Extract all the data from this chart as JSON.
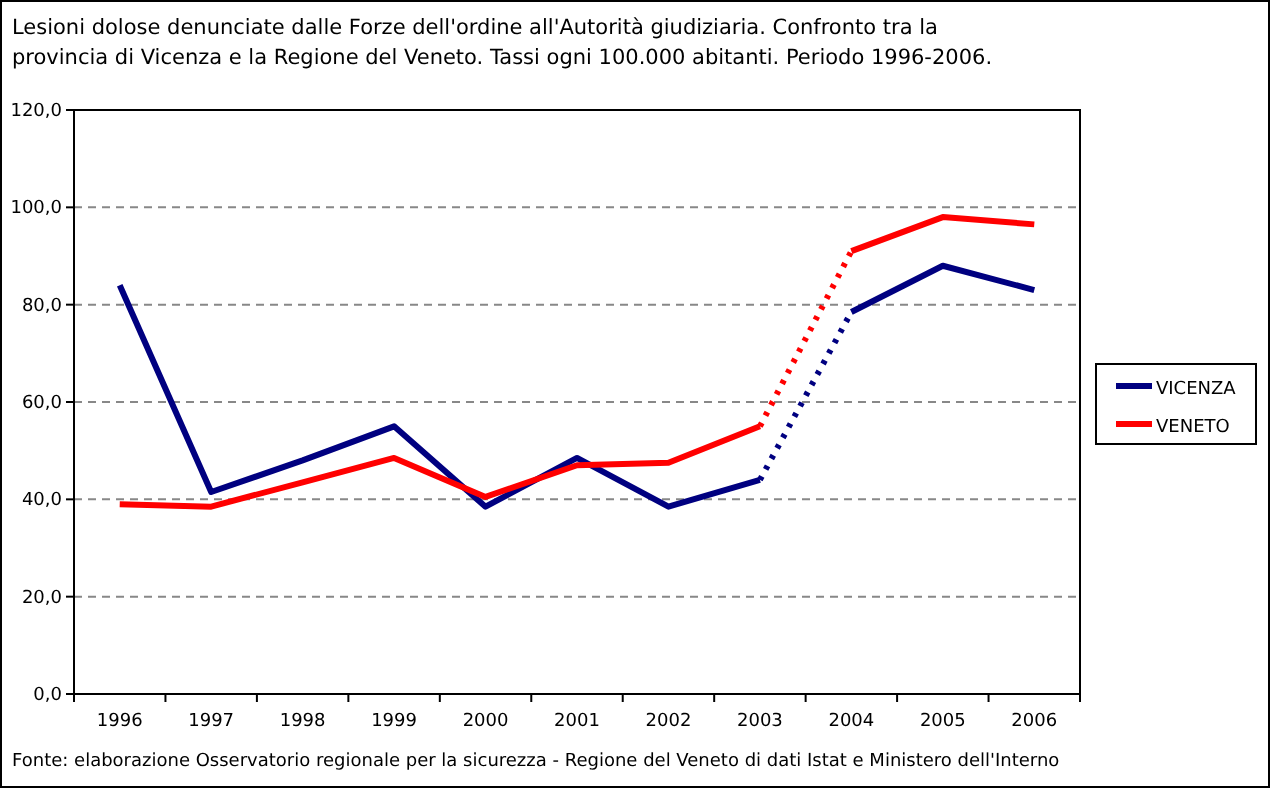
{
  "chart_data": {
    "type": "line",
    "title": "Lesioni dolose denunciate dalle Forze dell'ordine all'Autorità giudiziaria. Confronto tra la provincia di Vicenza e la Regione del Veneto. Tassi ogni 100.000 abitanti. Periodo 1996-2006.",
    "categories": [
      "1996",
      "1997",
      "1998",
      "1999",
      "2000",
      "2001",
      "2002",
      "2003",
      "2004",
      "2005",
      "2006"
    ],
    "series": [
      {
        "name": "VICENZA",
        "color": "#000080",
        "values": [
          84,
          41.5,
          48,
          55,
          38.5,
          48.5,
          38.5,
          44,
          null,
          null,
          null
        ]
      },
      {
        "color": "#000080",
        "line_style": "dotted",
        "values": [
          null,
          null,
          null,
          null,
          null,
          null,
          null,
          44,
          78.5,
          null,
          null
        ]
      },
      {
        "color": "#000080",
        "values": [
          null,
          null,
          null,
          null,
          null,
          null,
          null,
          null,
          78.5,
          88,
          83
        ]
      },
      {
        "name": "VENETO",
        "color": "#ff0000",
        "values": [
          39,
          38.5,
          43.5,
          48.5,
          40.5,
          47,
          47.5,
          55,
          null,
          null,
          null
        ]
      },
      {
        "color": "#ff0000",
        "line_style": "dotted",
        "values": [
          null,
          null,
          null,
          null,
          null,
          null,
          null,
          55,
          91,
          null,
          null
        ]
      },
      {
        "color": "#ff0000",
        "values": [
          null,
          null,
          null,
          null,
          null,
          null,
          null,
          null,
          91,
          98,
          96.5
        ]
      }
    ],
    "ylim": [
      0,
      120
    ],
    "yticks": [
      {
        "value": 0,
        "label": "0,0"
      },
      {
        "value": 20,
        "label": "20,0"
      },
      {
        "value": 40,
        "label": "40,0"
      },
      {
        "value": 60,
        "label": "60,0"
      },
      {
        "value": 80,
        "label": "80,0"
      },
      {
        "value": 100,
        "label": "100,0"
      },
      {
        "value": 120,
        "label": "120,0"
      }
    ],
    "grid": "y",
    "legend": "right",
    "line_style": "solid",
    "annotations": [
      "Fonte: elaborazione Osservatorio regionale per la sicurezza - Regione del Veneto di dati Istat e Ministero dell'Interno"
    ]
  }
}
